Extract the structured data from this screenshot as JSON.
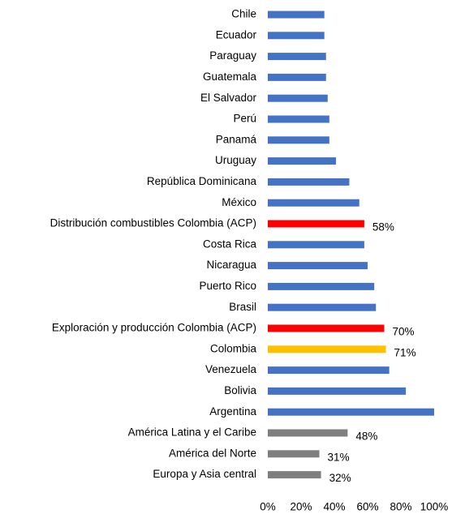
{
  "chart_data": {
    "type": "hbar",
    "categories": [
      "Chile",
      "Ecuador",
      "Paraguay",
      "Guatemala",
      "El Salvador",
      "Perú",
      "Panamá",
      "Uruguay",
      "República Dominicana",
      "México",
      "Distribución combustibles Colombia (ACP)",
      "Costa Rica",
      "Nicaragua",
      "Puerto Rico",
      "Brasil",
      "Exploración y producción Colombia (ACP)",
      "Colombia",
      "Venezuela",
      "Bolivia",
      "Argentina",
      "América Latina y el Caribe",
      "América del Norte",
      "Europa y Asia central"
    ],
    "values": [
      34,
      34,
      35,
      35,
      36,
      37,
      37,
      41,
      49,
      55,
      58,
      58,
      60,
      64,
      65,
      70,
      71,
      73,
      83,
      100,
      48,
      31,
      32
    ],
    "value_labels": [
      null,
      null,
      null,
      null,
      null,
      null,
      null,
      null,
      null,
      null,
      "58%",
      null,
      null,
      null,
      null,
      "70%",
      "71%",
      null,
      null,
      null,
      "48%",
      "31%",
      "32%"
    ],
    "colors": [
      "#4472c4",
      "#4472c4",
      "#4472c4",
      "#4472c4",
      "#4472c4",
      "#4472c4",
      "#4472c4",
      "#4472c4",
      "#4472c4",
      "#4472c4",
      "#ff0000",
      "#4472c4",
      "#4472c4",
      "#4472c4",
      "#4472c4",
      "#ff0000",
      "#ffc000",
      "#4472c4",
      "#4472c4",
      "#4472c4",
      "#7f7f7f",
      "#7f7f7f",
      "#7f7f7f"
    ],
    "xlim": [
      0,
      100
    ],
    "xticks": [
      {
        "value": 0,
        "label": "0%"
      },
      {
        "value": 20,
        "label": "20%"
      },
      {
        "value": 40,
        "label": "40%"
      },
      {
        "value": 60,
        "label": "60%"
      },
      {
        "value": 80,
        "label": "80%"
      },
      {
        "value": 100,
        "label": "100%"
      }
    ],
    "grid": false
  }
}
